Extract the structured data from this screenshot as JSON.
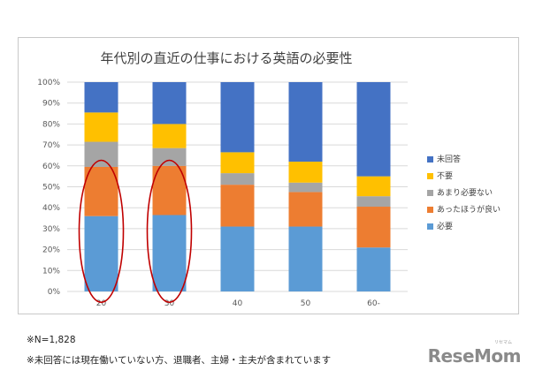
{
  "chart_data": {
    "type": "bar",
    "stacked": true,
    "normalized": true,
    "title": "年代別の直近の仕事における英語の必要性",
    "categories": [
      "20",
      "30",
      "40",
      "50",
      "60-"
    ],
    "yticks": [
      "0%",
      "10%",
      "20%",
      "30%",
      "40%",
      "50%",
      "60%",
      "70%",
      "80%",
      "90%",
      "100%"
    ],
    "ylim": [
      0,
      100
    ],
    "grid": true,
    "legend_position": "right",
    "series": [
      {
        "name": "必要",
        "color": "#5b9bd5",
        "values": [
          36,
          36.5,
          31,
          31,
          21
        ]
      },
      {
        "name": "あったほうが良い",
        "color": "#ed7d31",
        "values": [
          23.5,
          23.5,
          20,
          16.5,
          19.5
        ]
      },
      {
        "name": "あまり必要ない",
        "color": "#a5a5a5",
        "values": [
          12,
          8.5,
          5.5,
          4.5,
          5
        ]
      },
      {
        "name": "不要",
        "color": "#ffc000",
        "values": [
          14,
          11.5,
          10,
          10,
          9.5
        ]
      },
      {
        "name": "未回答",
        "color": "#4472c4",
        "values": [
          14.5,
          20,
          33.5,
          38,
          45
        ]
      }
    ],
    "highlighted_categories": [
      "20",
      "30"
    ],
    "highlight_color": "#c00000"
  },
  "notes": {
    "n": "※N=1,828",
    "unanswered": "※未回答には現在働いていない方、退職者、主婦・主夫が含まれています"
  },
  "brand": {
    "logo": "ReseMom",
    "ruby": "リセマム"
  }
}
